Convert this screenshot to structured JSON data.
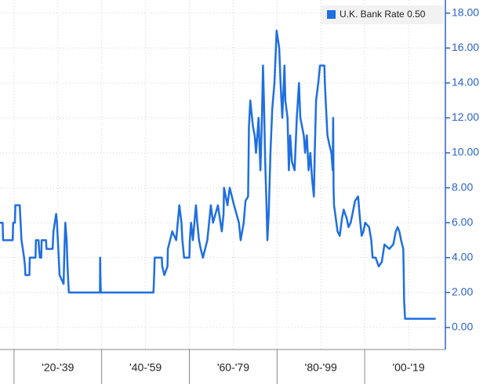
{
  "chart_data": {
    "type": "line",
    "series": [
      {
        "name": "U.K. Bank Rate",
        "color": "#1f6fe0",
        "x": [
          1916.8,
          1917.4,
          1917.5,
          1919.7,
          1919.8,
          1920.2,
          1920.3,
          1921.3,
          1921.4,
          1921.5,
          1921.7,
          1922.0,
          1922.3,
          1922.5,
          1922.6,
          1923.5,
          1923.6,
          1924.9,
          1925.0,
          1925.6,
          1925.7,
          1925.9,
          1926.2,
          1926.3,
          1927.3,
          1927.4,
          1928.8,
          1929.0,
          1929.6,
          1929.8,
          1929.9,
          1930.0,
          1930.2,
          1930.4,
          1931.3,
          1931.5,
          1931.7,
          1932.0,
          1932.2,
          1932.4,
          1932.5,
          1939.6,
          1939.65,
          1939.7,
          1939.8,
          1951.8,
          1951.9,
          1952.1,
          1953.7,
          1953.8,
          1954.3,
          1955.0,
          1955.1,
          1956.1,
          1957.0,
          1957.7,
          1958.2,
          1958.4,
          1958.6,
          1958.8,
          1960.0,
          1960.1,
          1960.4,
          1960.8,
          1961.5,
          1961.8,
          1962.2,
          1962.6,
          1963.1,
          1964.1,
          1964.9,
          1965.4,
          1966.5,
          1967.1,
          1967.4,
          1967.8,
          1967.9,
          1968.3,
          1968.7,
          1969.2,
          1970.2,
          1971.3,
          1971.7,
          1972.4,
          1972.8,
          1973.4,
          1973.6,
          1973.9,
          1974.1,
          1974.5,
          1974.9,
          1975.2,
          1975.5,
          1975.8,
          1976.2,
          1976.5,
          1976.8,
          1977.0,
          1977.3,
          1977.6,
          1977.8,
          1978.1,
          1978.5,
          1978.9,
          1979.4,
          1979.9,
          1980.5,
          1980.8,
          1981.2,
          1981.7,
          1981.9,
          1982.4,
          1982.7,
          1983.0,
          1983.4,
          1984.0,
          1984.5,
          1985.0,
          1985.3,
          1986.1,
          1986.4,
          1986.8,
          1987.2,
          1987.6,
          1988.0,
          1988.4,
          1988.6,
          1988.9,
          1989.4,
          1989.8,
          1990.8,
          1990.9,
          1991.2,
          1991.5,
          1991.9,
          1992.4,
          1992.7,
          1992.8,
          1992.9,
          1993.0,
          1993.8,
          1994.3,
          1994.8,
          1995.2,
          1995.9,
          1996.3,
          1996.8,
          1997.2,
          1997.8,
          1998.5,
          1998.9,
          1999.3,
          1999.7,
          2000.1,
          2001.0,
          2001.5,
          2001.8,
          2002.5,
          2003.2,
          2003.9,
          2004.5,
          2005.6,
          2006.5,
          2007.1,
          2007.5,
          2007.9,
          2008.3,
          2008.8,
          2008.9,
          2009.0,
          2009.2,
          2016.2
        ],
        "values": [
          6,
          6,
          5,
          5,
          6,
          6,
          7,
          7,
          6.5,
          6,
          5,
          4.5,
          4,
          3.5,
          3,
          3,
          4,
          4,
          5,
          5,
          4.5,
          4,
          4,
          5,
          5,
          4.5,
          4.5,
          5.5,
          6.5,
          6,
          5.5,
          5,
          4,
          3,
          2.5,
          4.5,
          6,
          5,
          3.5,
          2.5,
          2,
          2,
          4,
          3,
          2,
          2,
          2.5,
          4,
          4,
          3.5,
          3,
          3.5,
          4.5,
          5.5,
          5,
          7,
          6,
          5,
          4.5,
          4,
          4,
          5,
          6,
          5,
          7,
          6,
          5,
          4.5,
          4,
          5,
          7,
          6,
          7,
          6,
          5.5,
          6.5,
          8,
          7.5,
          7,
          8,
          7,
          6,
          5,
          6,
          7.25,
          7.5,
          11.5,
          13,
          12.5,
          11.5,
          11,
          10,
          11,
          12,
          9,
          11.5,
          15,
          13,
          9.5,
          7,
          5,
          6.5,
          10,
          12.5,
          14,
          17,
          16,
          14,
          12,
          15,
          13,
          12,
          9,
          11,
          9.5,
          9,
          12,
          14,
          12,
          11,
          10,
          11,
          9,
          10,
          8.5,
          7.5,
          10,
          13,
          14,
          15,
          15,
          14,
          12.5,
          11,
          10.5,
          10,
          9,
          12,
          8,
          7,
          5.5,
          5.25,
          6.25,
          6.75,
          6.25,
          5.75,
          6,
          6.5,
          7.25,
          7.5,
          6.25,
          5.25,
          5.5,
          6,
          5.75,
          5,
          4,
          4,
          3.5,
          3.75,
          4.75,
          4.5,
          4.75,
          5.5,
          5.75,
          5.5,
          5,
          4.5,
          3,
          1.5,
          0.5,
          0.5
        ]
      }
    ],
    "legend_value": "0.50",
    "xlim": [
      1916.8,
      2018.4
    ],
    "xticks": [
      {
        "value": 1930,
        "label": "'20-'39"
      },
      {
        "value": 1950,
        "label": "'40-'59"
      },
      {
        "value": 1970,
        "label": "'60-'79"
      },
      {
        "value": 1990,
        "label": "'80-'99"
      },
      {
        "value": 2010,
        "label": "'00-'19"
      }
    ],
    "xgrid": [
      1920,
      1930,
      1940,
      1950,
      1960,
      1970,
      1980,
      1990,
      2000,
      2010
    ],
    "ylim": [
      -1.26,
      18.75
    ],
    "yticks": [
      {
        "value": 0,
        "label": "0.00"
      },
      {
        "value": 2,
        "label": "2.00"
      },
      {
        "value": 4,
        "label": "4.00"
      },
      {
        "value": 6,
        "label": "6.00"
      },
      {
        "value": 8,
        "label": "8.00"
      },
      {
        "value": 10,
        "label": "10.00"
      },
      {
        "value": 12,
        "label": "12.00"
      },
      {
        "value": 14,
        "label": "14.00"
      },
      {
        "value": 16,
        "label": "16.00"
      },
      {
        "value": 18,
        "label": "18.00"
      }
    ],
    "grid": true,
    "legend": "top-right"
  }
}
